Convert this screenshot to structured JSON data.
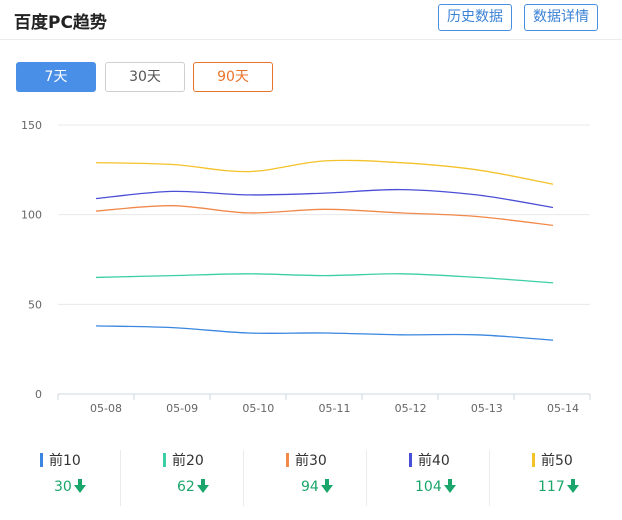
{
  "header": {
    "title": "百度PC趋势",
    "history_button": "历史数据",
    "detail_button": "数据详情"
  },
  "tabs": [
    {
      "label": "7天",
      "state": "selected"
    },
    {
      "label": "30天",
      "state": "normal"
    },
    {
      "label": "90天",
      "state": "highlighted"
    }
  ],
  "colors": {
    "top10": "#3a86e0",
    "top20": "#3ccfa6",
    "top30": "#f0894a",
    "top40": "#4b4fd6",
    "top50": "#f4c22b",
    "down": "#1aa66a"
  },
  "chart_data": {
    "type": "line",
    "categories": [
      "05-08",
      "05-09",
      "05-10",
      "05-11",
      "05-12",
      "05-13",
      "05-14"
    ],
    "ylim": [
      0,
      150
    ],
    "yticks": [
      0,
      50,
      100,
      150
    ],
    "grid": true,
    "series": [
      {
        "name": "前10",
        "color": "#3a86e0",
        "values": [
          38,
          37,
          34,
          34,
          33,
          33,
          30
        ]
      },
      {
        "name": "前20",
        "color": "#3ccfa6",
        "values": [
          65,
          66,
          67,
          66,
          67,
          65,
          62
        ]
      },
      {
        "name": "前30",
        "color": "#f0894a",
        "values": [
          102,
          105,
          101,
          103,
          101,
          99,
          94
        ]
      },
      {
        "name": "前40",
        "color": "#4b4fd6",
        "values": [
          109,
          113,
          111,
          112,
          114,
          111,
          104
        ]
      },
      {
        "name": "前50",
        "color": "#f4c22b",
        "values": [
          129,
          128,
          124,
          130,
          129,
          125,
          117
        ]
      }
    ]
  },
  "legend": [
    {
      "label": "前10",
      "value": "30",
      "trend": "down"
    },
    {
      "label": "前20",
      "value": "62",
      "trend": "down"
    },
    {
      "label": "前30",
      "value": "94",
      "trend": "down"
    },
    {
      "label": "前40",
      "value": "104",
      "trend": "down"
    },
    {
      "label": "前50",
      "value": "117",
      "trend": "down"
    }
  ]
}
